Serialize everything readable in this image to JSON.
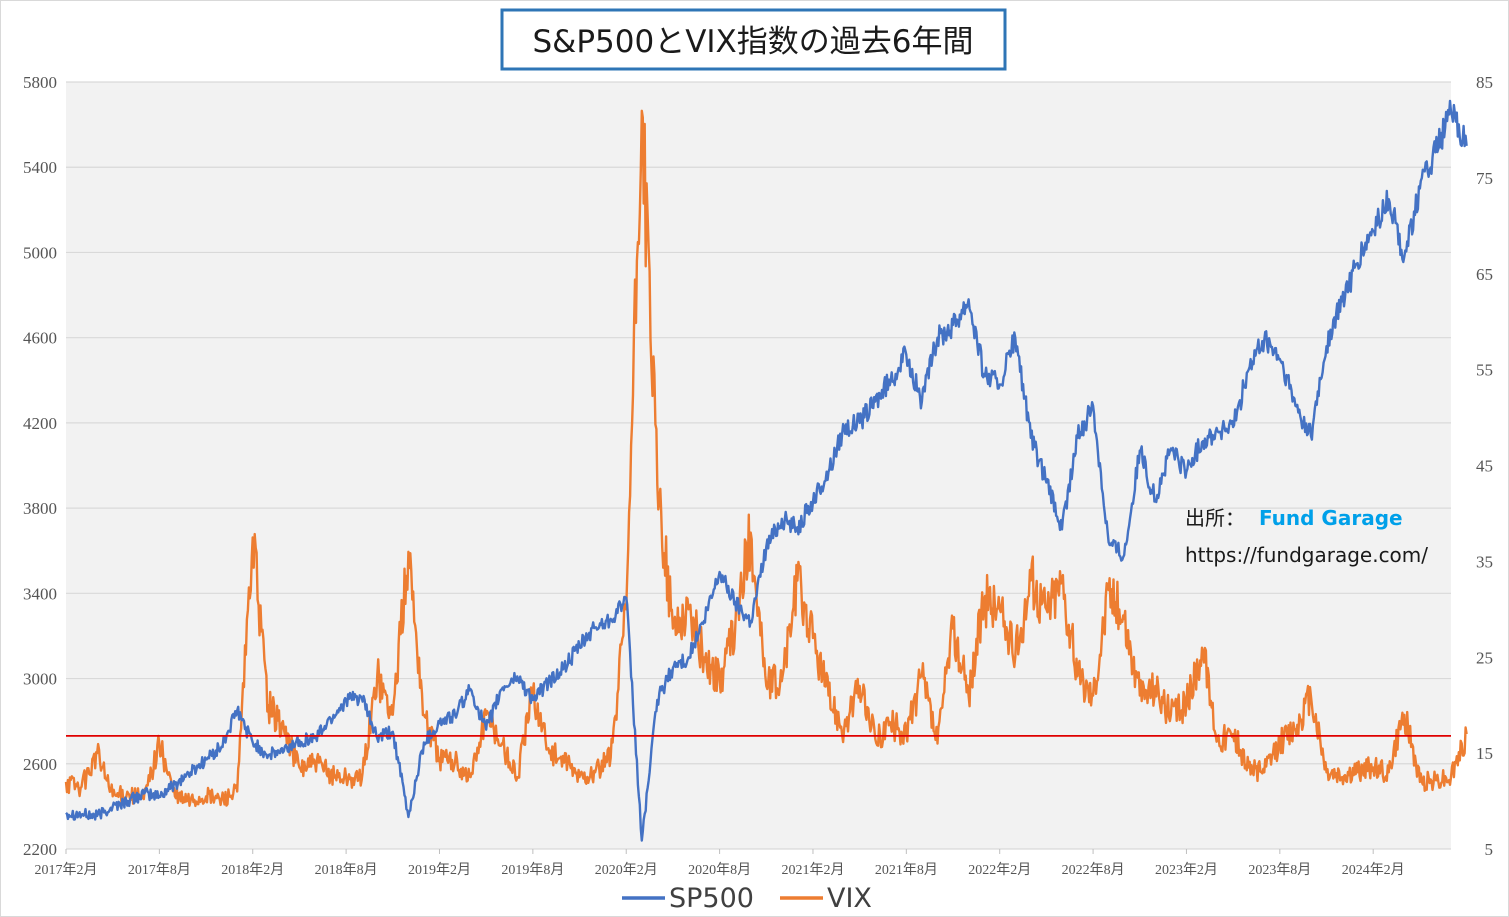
{
  "title": "S&P500とVIX指数の過去6年間",
  "source": {
    "label": "出所：",
    "brand": "Fund Garage",
    "url": "https://fundgarage.com/"
  },
  "colors": {
    "sp500": "#4472c4",
    "vix": "#ed7d31",
    "threshold": "#e00000",
    "plot_bg": "#f2f2f2",
    "grid": "#d9d9d9",
    "title_border": "#2e75b6"
  },
  "chart_data": {
    "type": "line",
    "x_tick_labels": [
      "2017年2月",
      "2017年8月",
      "2018年2月",
      "2018年8月",
      "2019年2月",
      "2019年8月",
      "2020年2月",
      "2020年8月",
      "2021年2月",
      "2021年8月",
      "2022年2月",
      "2022年8月",
      "2023年2月",
      "2023年8月",
      "2024年2月"
    ],
    "x_start": "2017-02",
    "x_end": "2024-07",
    "left_axis": {
      "min": 2200,
      "max": 5800,
      "ticks": [
        "2200",
        "2600",
        "3000",
        "3400",
        "3800",
        "4200",
        "4600",
        "5000",
        "5400",
        "5800"
      ]
    },
    "right_axis": {
      "min": 5,
      "max": 85,
      "ticks": [
        "5",
        "15",
        "25",
        "35",
        "45",
        "55",
        "65",
        "75",
        "85"
      ]
    },
    "grid": true,
    "legend_position": "bottom",
    "threshold": {
      "axis": "right",
      "value": 16.8
    },
    "series": [
      {
        "name": "SP500",
        "axis": "left",
        "points": [
          [
            "2017-02",
            2370
          ],
          [
            "2017-03",
            2362
          ],
          [
            "2017-04",
            2355
          ],
          [
            "2017-05",
            2400
          ],
          [
            "2017-06",
            2425
          ],
          [
            "2017-07",
            2460
          ],
          [
            "2017-08",
            2448
          ],
          [
            "2017-09",
            2505
          ],
          [
            "2017-10",
            2560
          ],
          [
            "2017-11",
            2620
          ],
          [
            "2017-12",
            2680
          ],
          [
            "2018-01",
            2850
          ],
          [
            "2018-02",
            2700
          ],
          [
            "2018-03",
            2640
          ],
          [
            "2018-04",
            2660
          ],
          [
            "2018-05",
            2710
          ],
          [
            "2018-06",
            2720
          ],
          [
            "2018-07",
            2810
          ],
          [
            "2018-08",
            2900
          ],
          [
            "2018-09",
            2910
          ],
          [
            "2018-10",
            2720
          ],
          [
            "2018-11",
            2750
          ],
          [
            "2018-12",
            2350
          ],
          [
            "2019-01",
            2700
          ],
          [
            "2019-02",
            2790
          ],
          [
            "2019-03",
            2830
          ],
          [
            "2019-04",
            2950
          ],
          [
            "2019-05",
            2760
          ],
          [
            "2019-06",
            2950
          ],
          [
            "2019-07",
            3010
          ],
          [
            "2019-08",
            2900
          ],
          [
            "2019-09",
            2980
          ],
          [
            "2019-10",
            3050
          ],
          [
            "2019-11",
            3150
          ],
          [
            "2019-12",
            3240
          ],
          [
            "2020-01",
            3280
          ],
          [
            "2020-02",
            3380
          ],
          [
            "2020-03",
            2240
          ],
          [
            "2020-04",
            2900
          ],
          [
            "2020-05",
            3050
          ],
          [
            "2020-06",
            3100
          ],
          [
            "2020-07",
            3270
          ],
          [
            "2020-08",
            3500
          ],
          [
            "2020-09",
            3360
          ],
          [
            "2020-10",
            3270
          ],
          [
            "2020-11",
            3620
          ],
          [
            "2020-12",
            3750
          ],
          [
            "2021-01",
            3710
          ],
          [
            "2021-02",
            3830
          ],
          [
            "2021-03",
            3970
          ],
          [
            "2021-04",
            4180
          ],
          [
            "2021-05",
            4200
          ],
          [
            "2021-06",
            4300
          ],
          [
            "2021-07",
            4400
          ],
          [
            "2021-08",
            4520
          ],
          [
            "2021-09",
            4300
          ],
          [
            "2021-10",
            4600
          ],
          [
            "2021-11",
            4660
          ],
          [
            "2021-12",
            4780
          ],
          [
            "2022-01",
            4430
          ],
          [
            "2022-02",
            4380
          ],
          [
            "2022-03",
            4600
          ],
          [
            "2022-04",
            4130
          ],
          [
            "2022-05",
            3920
          ],
          [
            "2022-06",
            3700
          ],
          [
            "2022-07",
            4130
          ],
          [
            "2022-08",
            4280
          ],
          [
            "2022-09",
            3640
          ],
          [
            "2022-10",
            3580
          ],
          [
            "2022-11",
            4070
          ],
          [
            "2022-12",
            3840
          ],
          [
            "2023-01",
            4080
          ],
          [
            "2023-02",
            3970
          ],
          [
            "2023-03",
            4110
          ],
          [
            "2023-04",
            4160
          ],
          [
            "2023-05",
            4180
          ],
          [
            "2023-06",
            4450
          ],
          [
            "2023-07",
            4590
          ],
          [
            "2023-08",
            4500
          ],
          [
            "2023-09",
            4280
          ],
          [
            "2023-10",
            4140
          ],
          [
            "2023-11",
            4560
          ],
          [
            "2023-12",
            4770
          ],
          [
            "2024-01",
            4950
          ],
          [
            "2024-02",
            5100
          ],
          [
            "2024-03",
            5250
          ],
          [
            "2024-04",
            4980
          ],
          [
            "2024-05",
            5300
          ],
          [
            "2024-06",
            5470
          ],
          [
            "2024-07",
            5660
          ],
          [
            "2024-08",
            5500
          ]
        ]
      },
      {
        "name": "VIX",
        "axis": "right",
        "points": [
          [
            "2017-02",
            12
          ],
          [
            "2017-03",
            11.5
          ],
          [
            "2017-04",
            15
          ],
          [
            "2017-05",
            10.5
          ],
          [
            "2017-06",
            10.8
          ],
          [
            "2017-07",
            10.2
          ],
          [
            "2017-08",
            16
          ],
          [
            "2017-09",
            10.5
          ],
          [
            "2017-10",
            10
          ],
          [
            "2017-11",
            10.5
          ],
          [
            "2017-12",
            10.2
          ],
          [
            "2018-01",
            11
          ],
          [
            "2018-02",
            37.5
          ],
          [
            "2018-03",
            20
          ],
          [
            "2018-04",
            17.5
          ],
          [
            "2018-05",
            13.5
          ],
          [
            "2018-06",
            14
          ],
          [
            "2018-07",
            12.8
          ],
          [
            "2018-08",
            12.5
          ],
          [
            "2018-09",
            12.2
          ],
          [
            "2018-10",
            23
          ],
          [
            "2018-11",
            19
          ],
          [
            "2018-12",
            36
          ],
          [
            "2019-01",
            19
          ],
          [
            "2019-02",
            14.5
          ],
          [
            "2019-03",
            14
          ],
          [
            "2019-04",
            12.5
          ],
          [
            "2019-05",
            19
          ],
          [
            "2019-06",
            16
          ],
          [
            "2019-07",
            12.5
          ],
          [
            "2019-08",
            21.5
          ],
          [
            "2019-09",
            15.5
          ],
          [
            "2019-10",
            14
          ],
          [
            "2019-11",
            12.5
          ],
          [
            "2019-12",
            13
          ],
          [
            "2020-01",
            14.5
          ],
          [
            "2020-02",
            30
          ],
          [
            "2020-03",
            82
          ],
          [
            "2020-04",
            43
          ],
          [
            "2020-05",
            28
          ],
          [
            "2020-06",
            30
          ],
          [
            "2020-07",
            25
          ],
          [
            "2020-08",
            22.5
          ],
          [
            "2020-09",
            28
          ],
          [
            "2020-10",
            38
          ],
          [
            "2020-11",
            22
          ],
          [
            "2020-12",
            22.5
          ],
          [
            "2021-01",
            33
          ],
          [
            "2021-02",
            27
          ],
          [
            "2021-03",
            21
          ],
          [
            "2021-04",
            17.5
          ],
          [
            "2021-05",
            22
          ],
          [
            "2021-06",
            16.5
          ],
          [
            "2021-07",
            18
          ],
          [
            "2021-08",
            17
          ],
          [
            "2021-09",
            23
          ],
          [
            "2021-10",
            16
          ],
          [
            "2021-11",
            28
          ],
          [
            "2021-12",
            21
          ],
          [
            "2022-01",
            31
          ],
          [
            "2022-02",
            30
          ],
          [
            "2022-03",
            25
          ],
          [
            "2022-04",
            33
          ],
          [
            "2022-05",
            30
          ],
          [
            "2022-06",
            33
          ],
          [
            "2022-07",
            23
          ],
          [
            "2022-08",
            21
          ],
          [
            "2022-09",
            32
          ],
          [
            "2022-10",
            29
          ],
          [
            "2022-11",
            21
          ],
          [
            "2022-12",
            22
          ],
          [
            "2023-01",
            19
          ],
          [
            "2023-02",
            20
          ],
          [
            "2023-03",
            26
          ],
          [
            "2023-04",
            16.5
          ],
          [
            "2023-05",
            17
          ],
          [
            "2023-06",
            13.5
          ],
          [
            "2023-07",
            13
          ],
          [
            "2023-08",
            16
          ],
          [
            "2023-09",
            17.5
          ],
          [
            "2023-10",
            21
          ],
          [
            "2023-11",
            13
          ],
          [
            "2023-12",
            12.5
          ],
          [
            "2024-01",
            13
          ],
          [
            "2024-02",
            13.5
          ],
          [
            "2024-03",
            13
          ],
          [
            "2024-04",
            19
          ],
          [
            "2024-05",
            12
          ],
          [
            "2024-06",
            12.2
          ],
          [
            "2024-07",
            12.5
          ],
          [
            "2024-08",
            17
          ]
        ]
      }
    ]
  }
}
